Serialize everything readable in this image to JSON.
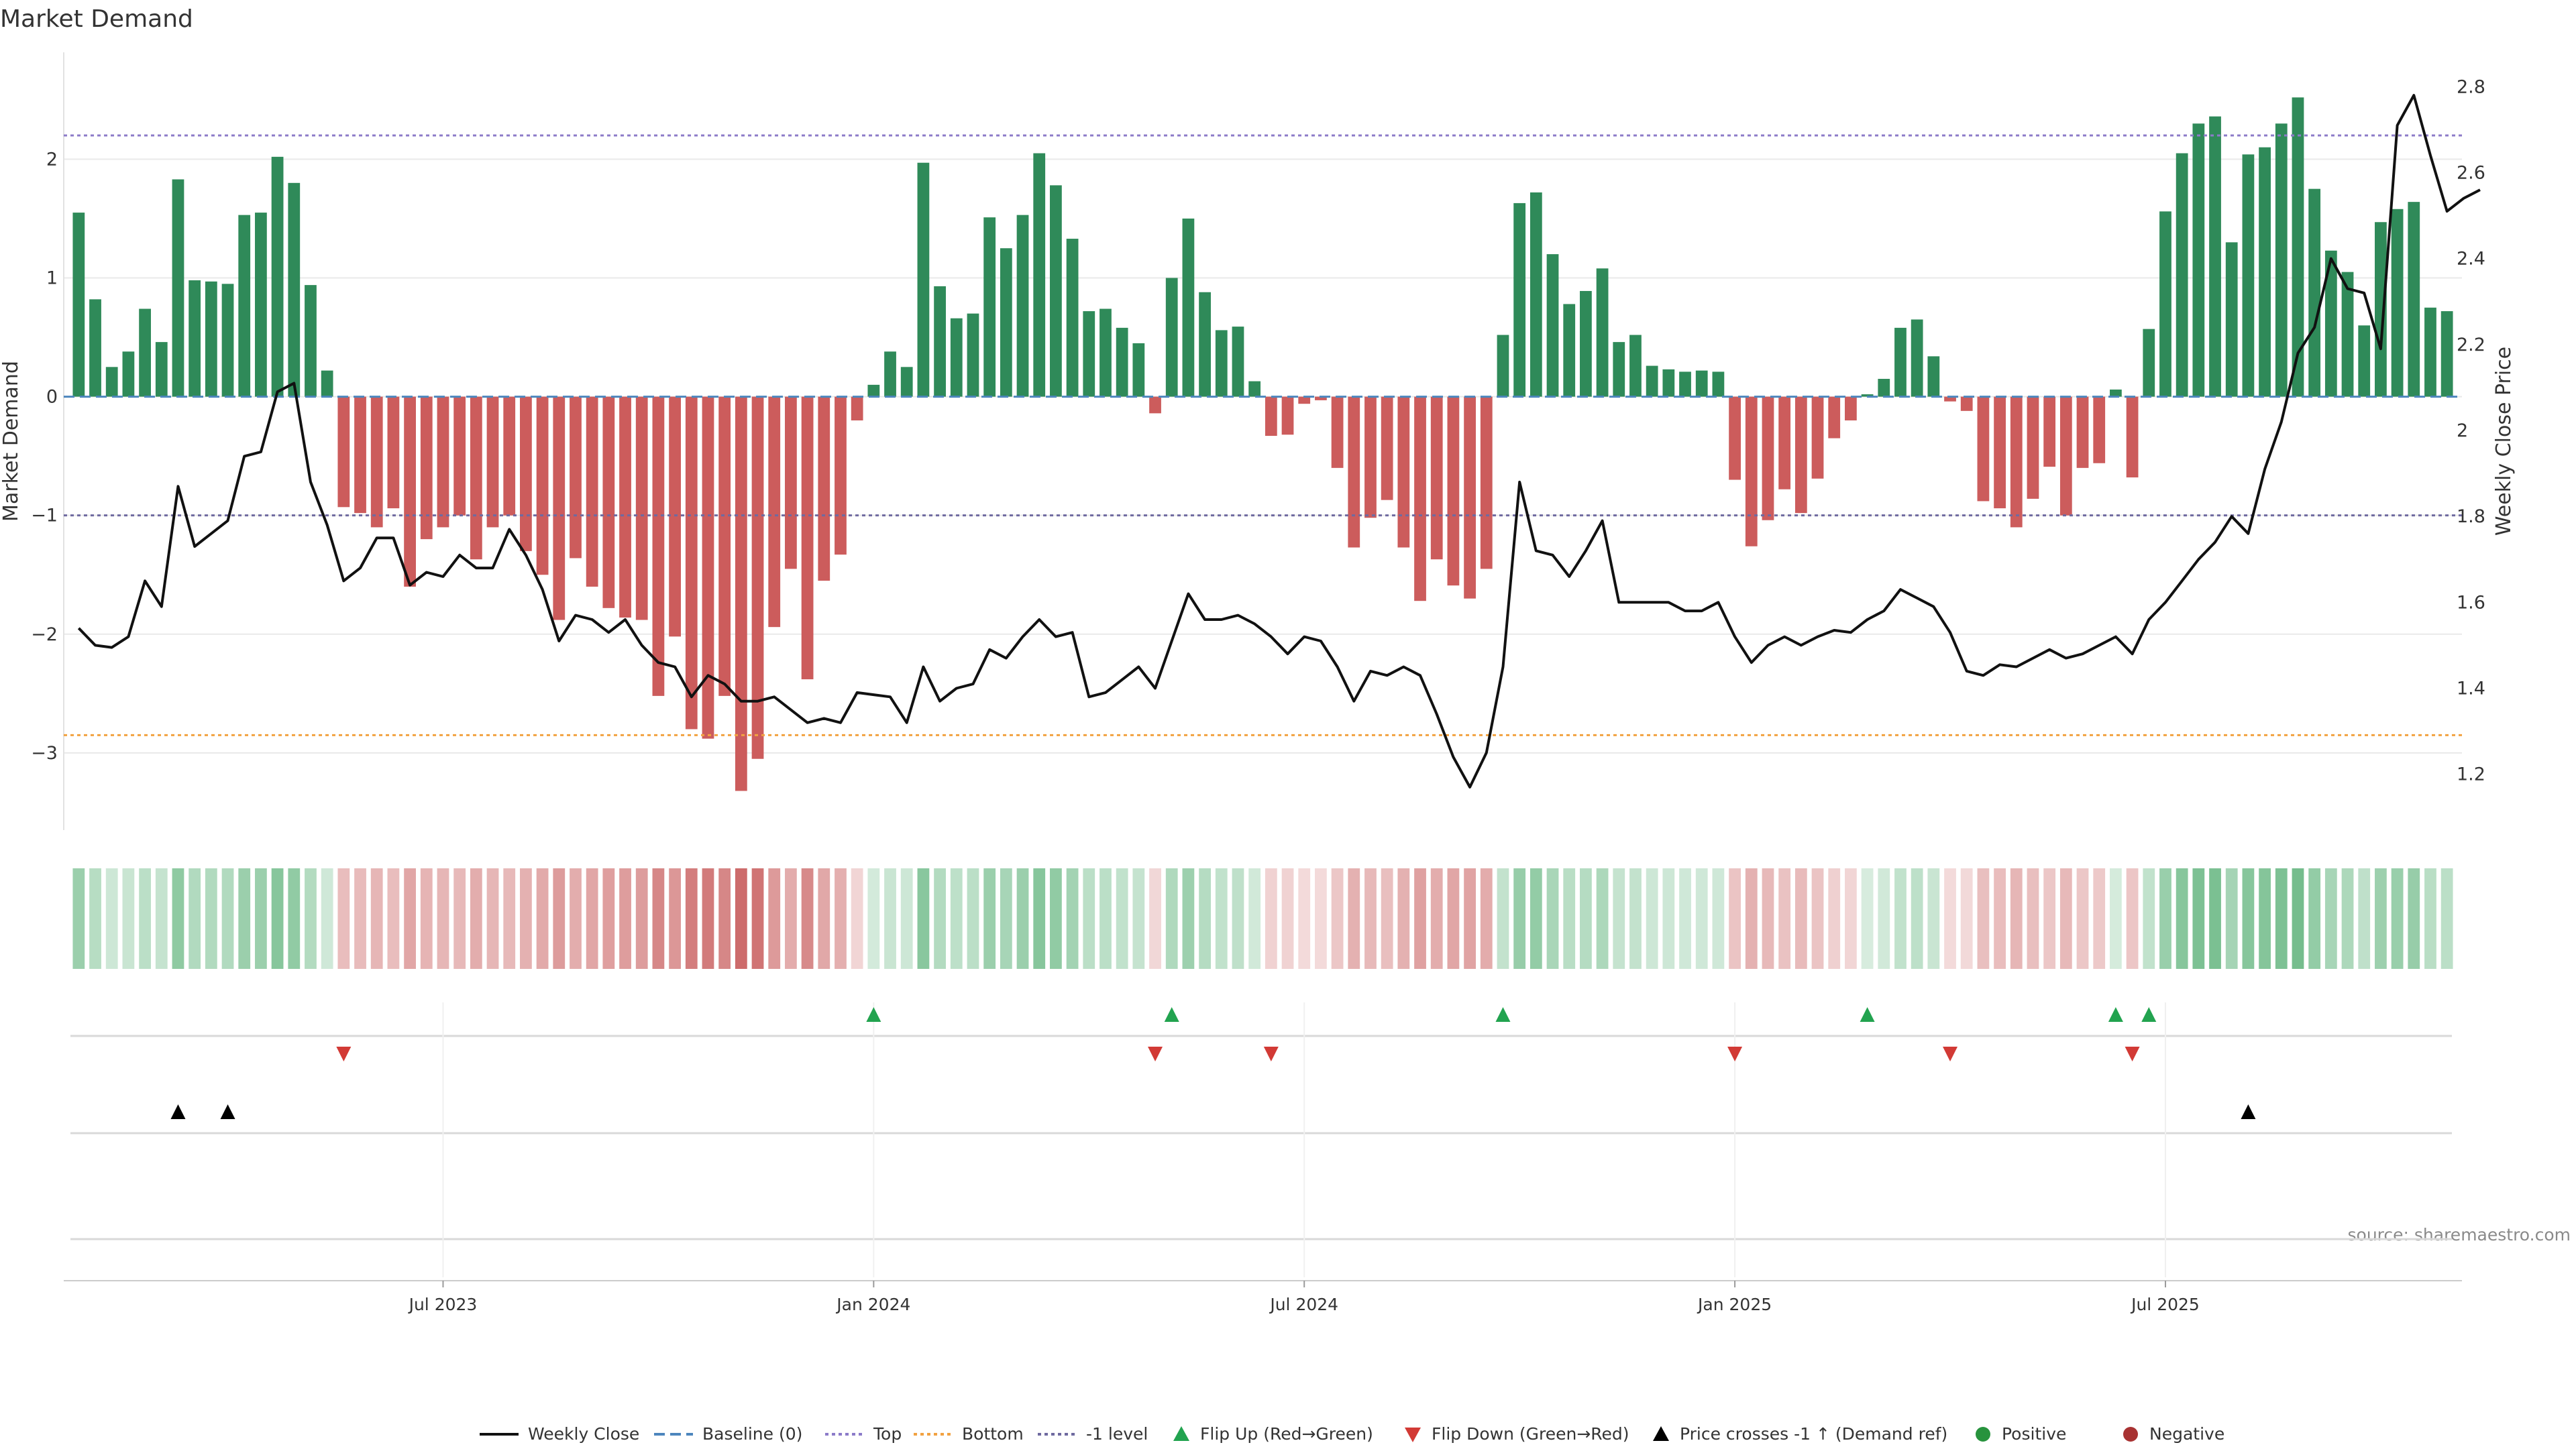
{
  "chart_data": {
    "type": "bar",
    "title": "Market Demand",
    "ylabel_left": "Market Demand",
    "ylabel_right": "Weekly Close Price",
    "source": "source: sharemaestro.com",
    "ylim_left": [
      -3.65,
      2.9
    ],
    "yticks_left": [
      {
        "value": 2,
        "label": "2"
      },
      {
        "value": 1,
        "label": "1"
      },
      {
        "value": 0,
        "label": "0"
      },
      {
        "value": -1,
        "label": "−1"
      },
      {
        "value": -2,
        "label": "−2"
      },
      {
        "value": -3,
        "label": "−3"
      }
    ],
    "ylim_right": [
      1.07,
      2.88
    ],
    "yticks_right": [
      {
        "value": 2.8,
        "label": "2.8"
      },
      {
        "value": 2.6,
        "label": "2.6"
      },
      {
        "value": 2.4,
        "label": "2.4"
      },
      {
        "value": 2.2,
        "label": "2.2"
      },
      {
        "value": 2.0,
        "label": "2"
      },
      {
        "value": 1.8,
        "label": "1.8"
      },
      {
        "value": 1.6,
        "label": "1.6"
      },
      {
        "value": 1.4,
        "label": "1.4"
      },
      {
        "value": 1.2,
        "label": "1.2"
      }
    ],
    "reference_lines": {
      "top": 2.2,
      "bottom": -2.85,
      "minus_one": -1,
      "baseline": 0
    },
    "x_start_week": 0,
    "x_end_week": 144,
    "x_ticks": [
      {
        "week": 22,
        "label": "Jul 2023"
      },
      {
        "week": 48,
        "label": "Jan 2024"
      },
      {
        "week": 74,
        "label": "Jul 2024"
      },
      {
        "week": 100,
        "label": "Jan 2025"
      },
      {
        "week": 126,
        "label": "Jul 2025"
      }
    ],
    "demand": [
      1.55,
      0.82,
      0.25,
      0.38,
      0.74,
      0.46,
      1.83,
      0.98,
      0.97,
      0.95,
      1.53,
      1.55,
      2.02,
      1.8,
      0.94,
      0.22,
      -0.93,
      -0.98,
      -1.1,
      -0.94,
      -1.6,
      -1.2,
      -1.1,
      -1.0,
      -1.37,
      -1.1,
      -1.0,
      -1.3,
      -1.5,
      -1.88,
      -1.36,
      -1.6,
      -1.78,
      -1.86,
      -1.88,
      -2.52,
      -2.02,
      -2.8,
      -2.88,
      -2.52,
      -3.32,
      -3.05,
      -1.94,
      -1.45,
      -2.38,
      -1.55,
      -1.33,
      -0.2,
      0.1,
      0.38,
      0.25,
      1.97,
      0.93,
      0.66,
      0.7,
      1.51,
      1.25,
      1.53,
      2.05,
      1.78,
      1.33,
      0.72,
      0.74,
      0.58,
      0.45,
      -0.14,
      1.0,
      1.5,
      0.88,
      0.56,
      0.59,
      0.13,
      -0.33,
      -0.32,
      -0.06,
      -0.03,
      -0.6,
      -1.27,
      -1.02,
      -0.87,
      -1.27,
      -1.72,
      -1.37,
      -1.59,
      -1.7,
      -1.45,
      0.52,
      1.63,
      1.72,
      1.2,
      0.78,
      0.89,
      1.08,
      0.46,
      0.52,
      0.26,
      0.23,
      0.21,
      0.22,
      0.21,
      -0.7,
      -1.26,
      -1.04,
      -0.78,
      -0.98,
      -0.69,
      -0.35,
      -0.2,
      0.02,
      0.15,
      0.58,
      0.65,
      0.34,
      -0.04,
      -0.12,
      -0.88,
      -0.94,
      -1.1,
      -0.86,
      -0.59,
      -1.0,
      -0.6,
      -0.56,
      0.06,
      -0.68,
      0.57,
      1.56,
      2.05,
      2.3,
      2.36,
      1.3,
      2.04,
      2.1,
      2.3,
      2.52,
      1.75,
      1.23,
      1.05,
      0.6,
      1.47,
      1.58,
      1.64,
      0.75,
      0.72
    ],
    "weekly_close": [
      1.54,
      1.5,
      1.495,
      1.52,
      1.65,
      1.59,
      1.87,
      1.73,
      1.76,
      1.79,
      1.94,
      1.95,
      2.09,
      2.11,
      1.88,
      1.78,
      1.65,
      1.68,
      1.75,
      1.75,
      1.64,
      1.67,
      1.66,
      1.71,
      1.68,
      1.68,
      1.77,
      1.71,
      1.63,
      1.51,
      1.57,
      1.56,
      1.53,
      1.56,
      1.5,
      1.46,
      1.45,
      1.38,
      1.43,
      1.41,
      1.37,
      1.37,
      1.38,
      1.35,
      1.32,
      1.33,
      1.32,
      1.39,
      1.385,
      1.38,
      1.32,
      1.45,
      1.37,
      1.4,
      1.41,
      1.49,
      1.47,
      1.52,
      1.56,
      1.52,
      1.53,
      1.38,
      1.39,
      1.42,
      1.45,
      1.4,
      1.51,
      1.62,
      1.56,
      1.56,
      1.57,
      1.55,
      1.52,
      1.48,
      1.52,
      1.51,
      1.45,
      1.37,
      1.44,
      1.43,
      1.45,
      1.43,
      1.34,
      1.24,
      1.17,
      1.25,
      1.45,
      1.88,
      1.72,
      1.71,
      1.66,
      1.72,
      1.79,
      1.6,
      1.6,
      1.6,
      1.6,
      1.58,
      1.58,
      1.6,
      1.52,
      1.46,
      1.5,
      1.52,
      1.5,
      1.52,
      1.535,
      1.53,
      1.56,
      1.58,
      1.63,
      1.61,
      1.59,
      1.53,
      1.44,
      1.43,
      1.455,
      1.45,
      1.47,
      1.49,
      1.47,
      1.48,
      1.5,
      1.52,
      1.48,
      1.56,
      1.6,
      1.65,
      1.7,
      1.74,
      1.8,
      1.76,
      1.91,
      2.02,
      2.18,
      2.24,
      2.4,
      2.33,
      2.32,
      2.19,
      2.71,
      2.78,
      2.64,
      2.51,
      2.54,
      2.56
    ],
    "flip_up_weeks": [
      48,
      66,
      86,
      108,
      123,
      125
    ],
    "flip_down_weeks": [
      16,
      65,
      72,
      100,
      113,
      124
    ],
    "price_cross_weeks": [
      6,
      9,
      131
    ],
    "legend": [
      {
        "key": "weekly_close",
        "label": "Weekly Close",
        "color": "#111111"
      },
      {
        "key": "baseline",
        "label": "Baseline (0)",
        "color": "#4d86bd"
      },
      {
        "key": "top",
        "label": "Top",
        "color": "#8c7bc9"
      },
      {
        "key": "bottom",
        "label": "Bottom",
        "color": "#f2a241"
      },
      {
        "key": "minus_one",
        "label": "-1 level",
        "color": "#6f6aa0"
      },
      {
        "key": "flip_up",
        "label": "Flip Up (Red→Green)",
        "color": "#22a34f"
      },
      {
        "key": "flip_down",
        "label": "Flip Down (Green→Red)",
        "color": "#d23a35"
      },
      {
        "key": "price_cross",
        "label": "Price crosses -1 ↑ (Demand ref)",
        "color": "#000000"
      },
      {
        "key": "positive",
        "label": "Positive",
        "color": "#27933d"
      },
      {
        "key": "negative",
        "label": "Negative",
        "color": "#a83232"
      }
    ],
    "colors": {
      "positive_bar": "#2f8a59",
      "negative_bar": "#cc5c5c",
      "heat_positive": "#37a05a",
      "heat_negative": "#c45151",
      "grid": "#e9e9e9",
      "axis": "#cccccc"
    }
  }
}
